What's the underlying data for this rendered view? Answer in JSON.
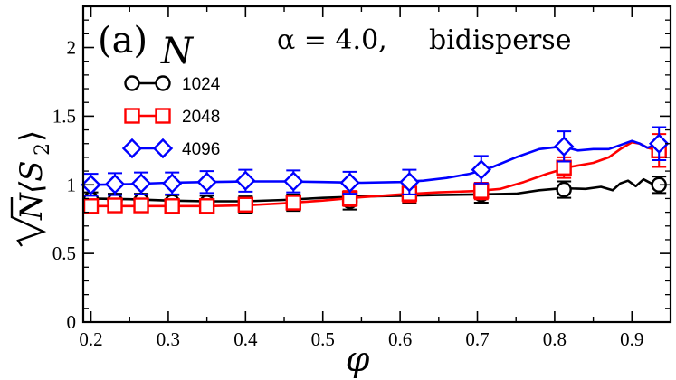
{
  "chart_data": {
    "type": "line",
    "panel_label": "(a)",
    "legend_title": "N",
    "annotation_alpha": "α = 4.0,",
    "annotation_type": "bidisperse",
    "xlabel": "φ",
    "ylabel_radicand": "N",
    "ylabel_tail": "⟨S",
    "ylabel_subscript": "2",
    "ylabel_close": "⟩",
    "xlim": [
      0.19,
      0.95
    ],
    "ylim": [
      0,
      2.3
    ],
    "x_ticks": [
      0.2,
      0.3,
      0.4,
      0.5,
      0.6,
      0.7,
      0.8,
      0.9
    ],
    "x_tick_labels": [
      "0.2",
      "0.3",
      "0.4",
      "0.5",
      "0.6",
      "0.7",
      "0.8",
      "0.9"
    ],
    "y_ticks": [
      0,
      0.5,
      1,
      1.5,
      2
    ],
    "y_tick_labels": [
      "0",
      "0.5",
      "1",
      "1.5",
      "2"
    ],
    "series": [
      {
        "name": "1024",
        "color": "#000000",
        "marker": "circle",
        "line": [
          [
            0.2,
            0.9
          ],
          [
            0.25,
            0.895
          ],
          [
            0.3,
            0.885
          ],
          [
            0.35,
            0.88
          ],
          [
            0.4,
            0.88
          ],
          [
            0.45,
            0.89
          ],
          [
            0.5,
            0.905
          ],
          [
            0.55,
            0.915
          ],
          [
            0.6,
            0.92
          ],
          [
            0.65,
            0.925
          ],
          [
            0.7,
            0.93
          ],
          [
            0.75,
            0.935
          ],
          [
            0.78,
            0.96
          ],
          [
            0.81,
            0.975
          ],
          [
            0.84,
            0.97
          ],
          [
            0.86,
            0.985
          ],
          [
            0.875,
            0.96
          ],
          [
            0.885,
            1.01
          ],
          [
            0.895,
            1.03
          ],
          [
            0.905,
            0.99
          ],
          [
            0.915,
            1.04
          ],
          [
            0.925,
            1.01
          ],
          [
            0.935,
            1.02
          ]
        ],
        "points": [
          [
            0.2,
            0.895
          ],
          [
            0.231,
            0.885
          ],
          [
            0.265,
            0.885
          ],
          [
            0.305,
            0.875
          ],
          [
            0.35,
            0.87
          ],
          [
            0.4,
            0.855
          ],
          [
            0.462,
            0.87
          ],
          [
            0.535,
            0.88
          ],
          [
            0.612,
            0.93
          ],
          [
            0.705,
            0.93
          ],
          [
            0.812,
            0.965
          ],
          [
            0.935,
            1.0
          ]
        ],
        "errors": [
          0.05,
          0.05,
          0.05,
          0.05,
          0.05,
          0.06,
          0.06,
          0.06,
          0.06,
          0.06,
          0.06,
          0.06
        ]
      },
      {
        "name": "2048",
        "color": "#ff0000",
        "marker": "square",
        "line": [
          [
            0.2,
            0.845
          ],
          [
            0.25,
            0.845
          ],
          [
            0.3,
            0.845
          ],
          [
            0.35,
            0.845
          ],
          [
            0.4,
            0.85
          ],
          [
            0.45,
            0.865
          ],
          [
            0.5,
            0.885
          ],
          [
            0.55,
            0.91
          ],
          [
            0.6,
            0.93
          ],
          [
            0.65,
            0.945
          ],
          [
            0.7,
            0.955
          ],
          [
            0.73,
            0.97
          ],
          [
            0.76,
            1.02
          ],
          [
            0.79,
            1.08
          ],
          [
            0.82,
            1.13
          ],
          [
            0.85,
            1.16
          ],
          [
            0.87,
            1.2
          ],
          [
            0.885,
            1.26
          ],
          [
            0.9,
            1.31
          ],
          [
            0.91,
            1.3
          ],
          [
            0.92,
            1.27
          ],
          [
            0.935,
            1.25
          ]
        ],
        "points": [
          [
            0.2,
            0.845
          ],
          [
            0.231,
            0.85
          ],
          [
            0.265,
            0.85
          ],
          [
            0.305,
            0.845
          ],
          [
            0.35,
            0.845
          ],
          [
            0.4,
            0.855
          ],
          [
            0.462,
            0.87
          ],
          [
            0.535,
            0.9
          ],
          [
            0.612,
            0.935
          ],
          [
            0.705,
            0.955
          ],
          [
            0.812,
            1.125
          ],
          [
            0.935,
            1.25
          ]
        ],
        "errors": [
          0.045,
          0.045,
          0.045,
          0.045,
          0.045,
          0.05,
          0.05,
          0.055,
          0.06,
          0.06,
          0.075,
          0.12
        ]
      },
      {
        "name": "4096",
        "color": "#0000ff",
        "marker": "diamond",
        "line": [
          [
            0.2,
            1.0
          ],
          [
            0.25,
            1.005
          ],
          [
            0.3,
            1.015
          ],
          [
            0.35,
            1.02
          ],
          [
            0.4,
            1.025
          ],
          [
            0.45,
            1.025
          ],
          [
            0.5,
            1.02
          ],
          [
            0.55,
            1.015
          ],
          [
            0.6,
            1.02
          ],
          [
            0.63,
            1.03
          ],
          [
            0.66,
            1.05
          ],
          [
            0.69,
            1.08
          ],
          [
            0.72,
            1.13
          ],
          [
            0.75,
            1.2
          ],
          [
            0.78,
            1.26
          ],
          [
            0.81,
            1.28
          ],
          [
            0.83,
            1.25
          ],
          [
            0.85,
            1.26
          ],
          [
            0.87,
            1.26
          ],
          [
            0.885,
            1.29
          ],
          [
            0.9,
            1.32
          ],
          [
            0.91,
            1.3
          ],
          [
            0.92,
            1.27
          ],
          [
            0.935,
            1.3
          ]
        ],
        "points": [
          [
            0.2,
            1.0
          ],
          [
            0.231,
            1.005
          ],
          [
            0.265,
            1.01
          ],
          [
            0.305,
            1.01
          ],
          [
            0.35,
            1.02
          ],
          [
            0.4,
            1.03
          ],
          [
            0.462,
            1.025
          ],
          [
            0.535,
            1.015
          ],
          [
            0.612,
            1.02
          ],
          [
            0.705,
            1.11
          ],
          [
            0.812,
            1.28
          ],
          [
            0.935,
            1.3
          ]
        ],
        "errors": [
          0.08,
          0.08,
          0.08,
          0.08,
          0.08,
          0.08,
          0.08,
          0.08,
          0.09,
          0.1,
          0.11,
          0.12
        ]
      }
    ]
  }
}
